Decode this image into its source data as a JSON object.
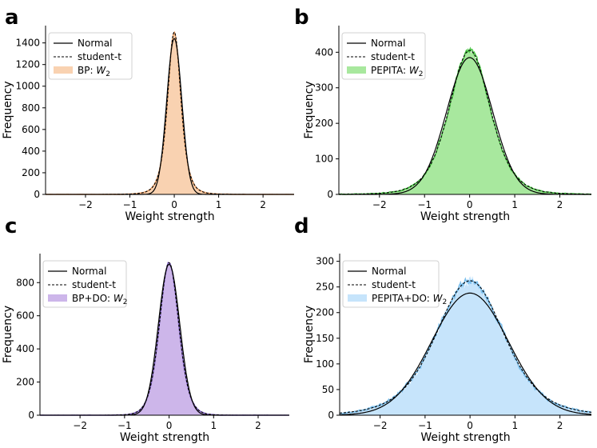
{
  "figure": {
    "shared_xlabel": "Weight strength",
    "shared_ylabel": "Frequency",
    "legend_common": [
      "Normal",
      "student-t"
    ]
  },
  "chart_data": [
    {
      "panel": "a",
      "type": "histogram+line",
      "title": "",
      "xlabel": "Weight strength",
      "ylabel": "Frequency",
      "xlim": [
        -2.9,
        2.7
      ],
      "ylim": [
        0,
        1560
      ],
      "xticks": [
        -2,
        -1,
        0,
        1,
        2
      ],
      "yticks": [
        0,
        200,
        400,
        600,
        800,
        1000,
        1200,
        1400
      ],
      "legend": [
        "Normal",
        "student-t",
        "BP: W2"
      ],
      "legend_position": "top-left",
      "hist_label_text": "BP: ",
      "hist_label_var": "W",
      "hist_label_sub": "2",
      "colors": {
        "fill": "#f9d2b1",
        "line": "#f2a66b"
      },
      "center": 0.0,
      "normal_peak": 1440,
      "normal_sd": 0.17,
      "student_peak": 1500,
      "student_df": 4,
      "noise": 25
    },
    {
      "panel": "b",
      "type": "histogram+line",
      "title": "",
      "xlabel": "Weight strength",
      "ylabel": "Frequency",
      "xlim": [
        -2.9,
        2.7
      ],
      "ylim": [
        0,
        475
      ],
      "xticks": [
        -2,
        -1,
        0,
        1,
        2
      ],
      "yticks": [
        0,
        100,
        200,
        300,
        400
      ],
      "legend": [
        "Normal",
        "student-t",
        "PEPITA: W2"
      ],
      "legend_position": "top-left",
      "hist_label_text": "PEPITA: ",
      "hist_label_var": "W",
      "hist_label_sub": "2",
      "colors": {
        "fill": "#a8e89e",
        "line": "#4fc94a"
      },
      "center": 0.0,
      "normal_peak": 385,
      "normal_sd": 0.51,
      "student_peak": 405,
      "student_df": 6,
      "noise": 18
    },
    {
      "panel": "c",
      "type": "histogram+line",
      "title": "",
      "xlabel": "Weight strength",
      "ylabel": "Frequency",
      "xlim": [
        -2.9,
        2.7
      ],
      "ylim": [
        0,
        975
      ],
      "xticks": [
        -2,
        -1,
        0,
        1,
        2
      ],
      "yticks": [
        0,
        200,
        400,
        600,
        800
      ],
      "legend": [
        "Normal",
        "student-t",
        "BP+DO: W2"
      ],
      "legend_position": "top-left",
      "hist_label_text": "BP+DO: ",
      "hist_label_var": "W",
      "hist_label_sub": "2",
      "colors": {
        "fill": "#cdb6ea",
        "line": "#8a6bd1"
      },
      "center": 0.0,
      "normal_peak": 910,
      "normal_sd": 0.24,
      "student_peak": 920,
      "student_df": 8,
      "noise": 18
    },
    {
      "panel": "d",
      "type": "histogram+line",
      "title": "",
      "xlabel": "Weight strength",
      "ylabel": "Frequency",
      "xlim": [
        -2.9,
        2.7
      ],
      "ylim": [
        0,
        315
      ],
      "xticks": [
        -2,
        -1,
        0,
        1,
        2
      ],
      "yticks": [
        0,
        50,
        100,
        150,
        200,
        250,
        300
      ],
      "legend": [
        "Normal",
        "student-t",
        "PEPITA+DO: W2"
      ],
      "legend_position": "top-left",
      "hist_label_text": "PEPITA+DO: ",
      "hist_label_var": "W",
      "hist_label_sub": "2",
      "colors": {
        "fill": "#c6e4fb",
        "line": "#7cc0ee"
      },
      "center": 0.0,
      "normal_peak": 238,
      "normal_sd": 0.85,
      "student_peak": 262,
      "student_df": 6,
      "noise": 18
    }
  ]
}
